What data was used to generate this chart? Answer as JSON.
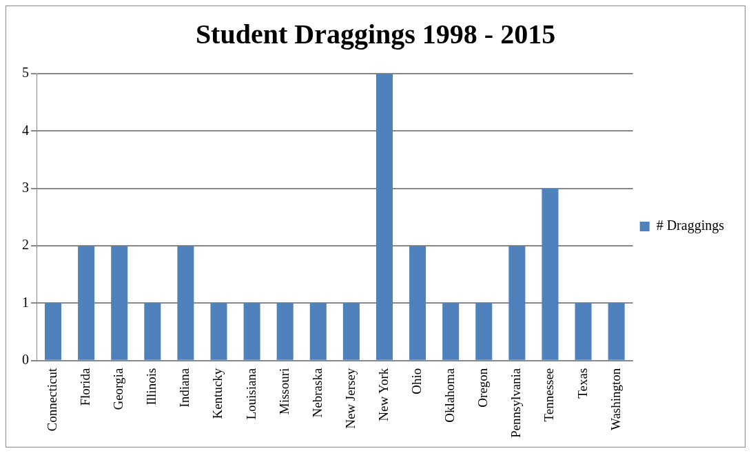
{
  "chart_data": {
    "type": "bar",
    "title": "Student Draggings 1998 - 2015",
    "categories": [
      "Connecticut",
      "Florida",
      "Georgia",
      "Illinois",
      "Indiana",
      "Kentucky",
      "Louisiana",
      "Missouri",
      "Nebraska",
      "New Jersey",
      "New York",
      "Ohio",
      "Oklahoma",
      "Oregon",
      "Pennsylvania",
      "Tennessee",
      "Texas",
      "Washington"
    ],
    "series": [
      {
        "name": "# Draggings",
        "color": "#4f81bd",
        "values": [
          1,
          2,
          2,
          1,
          2,
          1,
          1,
          1,
          1,
          1,
          5,
          2,
          1,
          1,
          2,
          3,
          1,
          1
        ]
      }
    ],
    "ylim": [
      0,
      5
    ],
    "yticks": [
      0,
      1,
      2,
      3,
      4,
      5
    ],
    "grid": "y",
    "legend": "right"
  }
}
